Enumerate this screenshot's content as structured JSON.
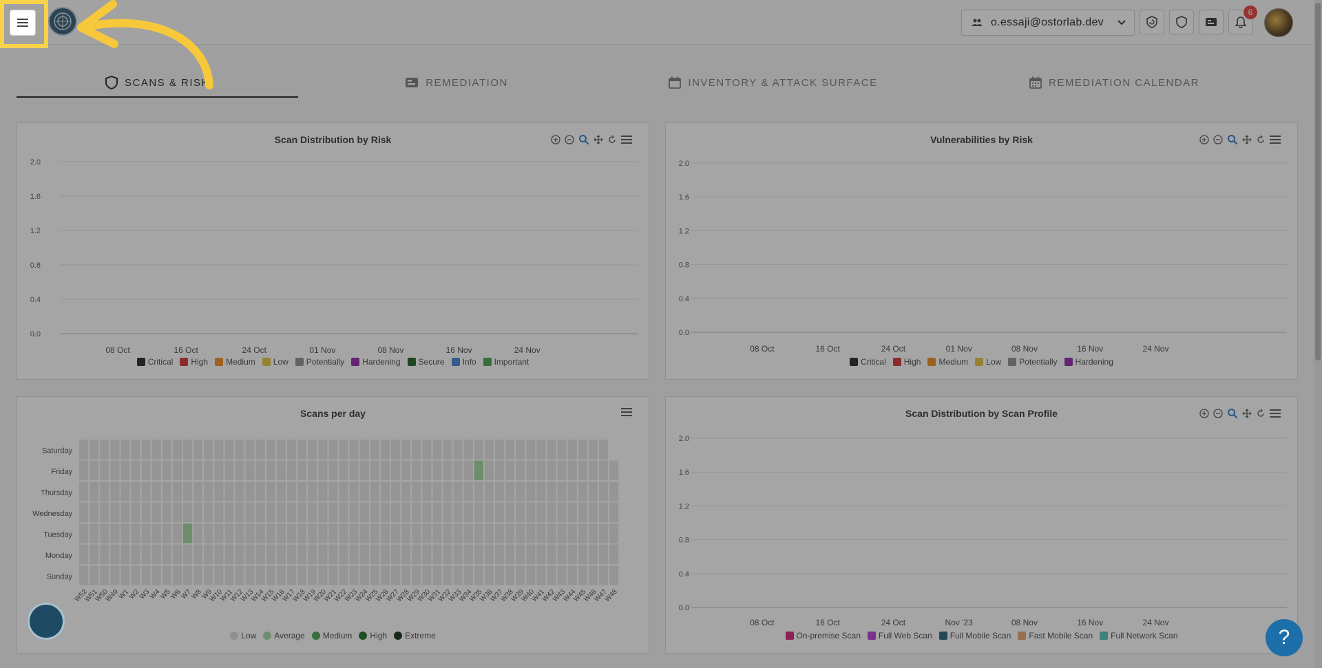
{
  "header": {
    "org_email": "o.essaji@ostorlab.dev",
    "notification_count": "6"
  },
  "tabs": [
    {
      "label": "SCANS & RISK",
      "icon": "shield-icon",
      "active": true
    },
    {
      "label": "REMEDIATION",
      "icon": "ticket-icon",
      "active": false
    },
    {
      "label": "INVENTORY & ATTACK SURFACE",
      "icon": "calendar-blank-icon",
      "active": false
    },
    {
      "label": "REMEDIATION CALENDAR",
      "icon": "calendar-icon",
      "active": false
    }
  ],
  "panels": {
    "scan_risk": {
      "title": "Scan Distribution by Risk"
    },
    "vuln_risk": {
      "title": "Vulnerabilities by Risk"
    },
    "scans_per_day": {
      "title": "Scans per day"
    },
    "scan_profile": {
      "title": "Scan Distribution by Scan Profile"
    }
  },
  "help_label": "?",
  "colors": {
    "highlight": "#f7d24a",
    "critical": "#222222",
    "high": "#d32f2f",
    "medium": "#ef8a17",
    "low": "#e7c339",
    "potentially": "#8c8c8c",
    "hardening": "#8e24aa",
    "secure": "#1b5e20",
    "info": "#3b82d6",
    "important": "#43a047"
  },
  "chart_data": [
    {
      "type": "bar",
      "title": "Scan Distribution by Risk",
      "x_ticks": [
        "08 Oct",
        "16 Oct",
        "24 Oct",
        "01 Nov",
        "08 Nov",
        "16 Nov",
        "24 Nov"
      ],
      "y_ticks": [
        "2.0",
        "1.6",
        "1.2",
        "0.8",
        "0.4",
        "0.0"
      ],
      "ylim": [
        0,
        2
      ],
      "grid": true,
      "legend_position": "bottom",
      "series": [
        {
          "name": "Critical",
          "color": "#222222",
          "values": []
        },
        {
          "name": "High",
          "color": "#d32f2f",
          "values": []
        },
        {
          "name": "Medium",
          "color": "#ef8a17",
          "values": []
        },
        {
          "name": "Low",
          "color": "#e7c339",
          "values": []
        },
        {
          "name": "Potentially",
          "color": "#8c8c8c",
          "values": []
        },
        {
          "name": "Hardening",
          "color": "#8e24aa",
          "values": []
        },
        {
          "name": "Secure",
          "color": "#1b5e20",
          "values": []
        },
        {
          "name": "Info",
          "color": "#3b82d6",
          "values": []
        },
        {
          "name": "Important",
          "color": "#43a047",
          "values": []
        }
      ]
    },
    {
      "type": "bar",
      "title": "Vulnerabilities by Risk",
      "x_ticks": [
        "08 Oct",
        "16 Oct",
        "24 Oct",
        "01 Nov",
        "08 Nov",
        "16 Nov",
        "24 Nov"
      ],
      "y_ticks": [
        "2.0",
        "1.6",
        "1.2",
        "0.8",
        "0.4",
        "0.0"
      ],
      "ylim": [
        0,
        2
      ],
      "grid": true,
      "legend_position": "bottom",
      "series": [
        {
          "name": "Critical",
          "color": "#222222",
          "values": []
        },
        {
          "name": "High",
          "color": "#d32f2f",
          "values": []
        },
        {
          "name": "Medium",
          "color": "#ef8a17",
          "values": []
        },
        {
          "name": "Low",
          "color": "#e7c339",
          "values": []
        },
        {
          "name": "Potentially",
          "color": "#8c8c8c",
          "values": []
        },
        {
          "name": "Hardening",
          "color": "#8e24aa",
          "values": []
        }
      ]
    },
    {
      "type": "heatmap",
      "title": "Scans per day",
      "rows": [
        "Saturday",
        "Friday",
        "Thursday",
        "Wednesday",
        "Tuesday",
        "Monday",
        "Sunday"
      ],
      "columns": [
        "W52",
        "W51",
        "W50",
        "W49",
        "W1",
        "W2",
        "W3",
        "W4",
        "W5",
        "W6",
        "W7",
        "W8",
        "W9",
        "W10",
        "W11",
        "W12",
        "W13",
        "W14",
        "W15",
        "W16",
        "W17",
        "W18",
        "W19",
        "W20",
        "W21",
        "W22",
        "W23",
        "W24",
        "W25",
        "W26",
        "W27",
        "W28",
        "W29",
        "W30",
        "W31",
        "W32",
        "W33",
        "W34",
        "W35",
        "W36",
        "W37",
        "W38",
        "W39",
        "W40",
        "W41",
        "W42",
        "W43",
        "W44",
        "W45",
        "W46",
        "W47",
        "W48"
      ],
      "active_cells": [
        {
          "row": "Tuesday",
          "column": "W7",
          "level": "Average"
        },
        {
          "row": "Friday",
          "column": "W35",
          "level": "Average"
        }
      ],
      "legend": [
        {
          "name": "Low",
          "color": "#d9d9d9"
        },
        {
          "name": "Average",
          "color": "#9ed89a"
        },
        {
          "name": "Medium",
          "color": "#43a047"
        },
        {
          "name": "High",
          "color": "#1b6b22"
        },
        {
          "name": "Extreme",
          "color": "#0d2b10"
        }
      ]
    },
    {
      "type": "bar",
      "title": "Scan Distribution by Scan Profile",
      "x_ticks": [
        "08 Oct",
        "16 Oct",
        "24 Oct",
        "Nov '23",
        "08 Nov",
        "16 Nov",
        "24 Nov"
      ],
      "y_ticks": [
        "2.0",
        "1.6",
        "1.2",
        "0.8",
        "0.4",
        "0.0"
      ],
      "ylim": [
        0,
        2
      ],
      "grid": true,
      "legend_position": "bottom",
      "series": [
        {
          "name": "On-premise Scan",
          "color": "#d81b7a",
          "values": []
        },
        {
          "name": "Full Web Scan",
          "color": "#b23ad6",
          "values": []
        },
        {
          "name": "Full Mobile Scan",
          "color": "#1f5f7a",
          "values": []
        },
        {
          "name": "Fast Mobile Scan",
          "color": "#e8a46b",
          "values": []
        },
        {
          "name": "Full Network Scan",
          "color": "#4fc3b4",
          "values": []
        }
      ]
    }
  ]
}
